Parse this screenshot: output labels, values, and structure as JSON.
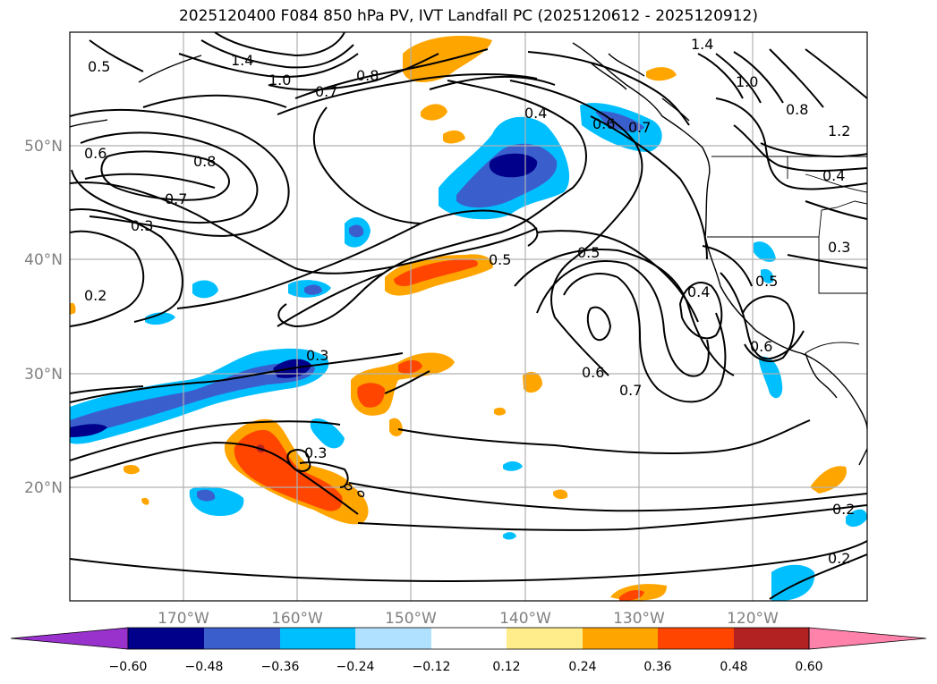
{
  "title": "2025120400 F084 850 hPa PV, IVT Landfall PC (2025120612 - 2025120912)",
  "axes": {
    "lon_labels": [
      "170°W",
      "160°W",
      "150°W",
      "140°W",
      "130°W",
      "120°W"
    ],
    "lat_labels": [
      "50°N",
      "40°N",
      "30°N",
      "20°N"
    ]
  },
  "colorbar": {
    "ticks": [
      "−0.60",
      "−0.48",
      "−0.36",
      "−0.24",
      "−0.12",
      "0.12",
      "0.24",
      "0.36",
      "0.48",
      "0.60"
    ],
    "colors": [
      "#9932cc",
      "#00008b",
      "#3a5fcd",
      "#00bfff",
      "#b0e2ff",
      "#ffffff",
      "#ffec8b",
      "#ffa500",
      "#ff4500",
      "#b22222",
      "#ff82ab"
    ]
  },
  "contour_labels": [
    "0.5",
    "1.4",
    "1.0",
    "0.7",
    "0.8",
    "0.6",
    "0.8",
    "0.7",
    "0.3",
    "0.2",
    "0.4",
    "0.6",
    "0.7",
    "1.4",
    "1.0",
    "0.8",
    "1.2",
    "0.4",
    "0.5",
    "0.5",
    "0.4",
    "0.5",
    "0.3",
    "0.6",
    "0.3",
    "0.3",
    "0.6",
    "0.7",
    "0.2",
    "0.2"
  ]
}
